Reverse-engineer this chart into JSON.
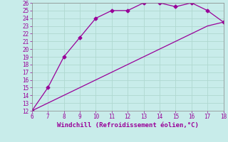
{
  "upper_x": [
    6,
    7,
    8,
    9,
    10,
    11,
    12,
    13,
    14,
    15,
    16,
    17,
    18
  ],
  "upper_y": [
    12,
    15,
    19,
    21.5,
    24,
    25,
    25,
    26,
    26,
    25.5,
    26,
    25,
    23.5
  ],
  "lower_x": [
    6,
    7,
    8,
    9,
    10,
    11,
    12,
    13,
    14,
    15,
    16,
    17,
    18
  ],
  "lower_y": [
    12,
    13,
    14,
    15,
    16,
    17,
    18,
    19,
    20,
    21,
    22,
    23,
    23.5
  ],
  "line_color": "#990099",
  "bg_color": "#c8ecea",
  "grid_color": "#b0d8d0",
  "xlabel": "Windchill (Refroidissement éolien,°C)",
  "xlim": [
    6,
    18
  ],
  "ylim": [
    12,
    26
  ],
  "xticks": [
    6,
    7,
    8,
    9,
    10,
    11,
    12,
    13,
    14,
    15,
    16,
    17,
    18
  ],
  "yticks": [
    12,
    13,
    14,
    15,
    16,
    17,
    18,
    19,
    20,
    21,
    22,
    23,
    24,
    25,
    26
  ],
  "marker": "D",
  "marker_size": 2.5,
  "line_width": 0.9,
  "xlabel_fontsize": 6.5,
  "tick_fontsize": 5.5
}
